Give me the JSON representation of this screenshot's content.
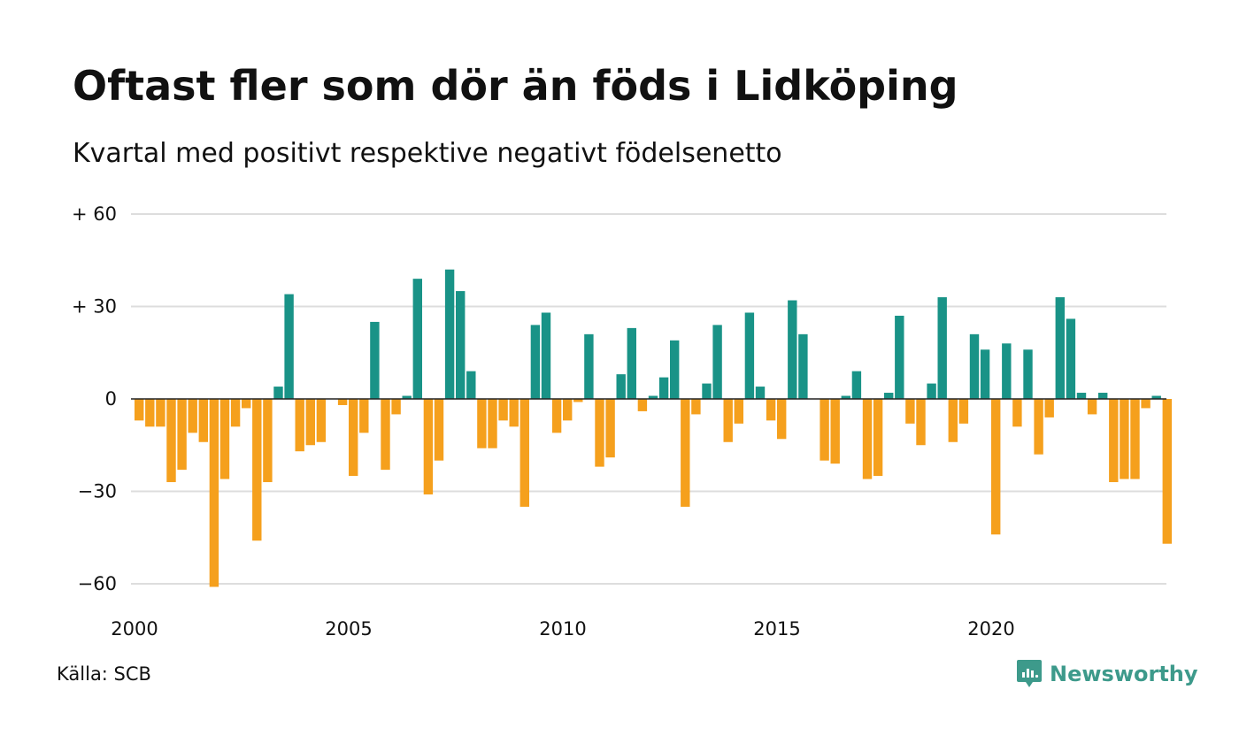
{
  "header": {
    "title": "Oftast fler som dör än föds i Lidköping",
    "subtitle": "Kvartal med positivt respektive negativt födelsenetto"
  },
  "footer": {
    "source": "Källa: SCB",
    "brand": "Newsworthy",
    "brand_icon": "newsworthy-logo-icon"
  },
  "colors": {
    "positive": "#199387",
    "negative": "#f5a01d",
    "grid": "#dddddd",
    "brand": "#3d9a8b"
  },
  "chart_data": {
    "type": "bar",
    "title": "Oftast fler som dör än föds i Lidköping",
    "subtitle": "Kvartal med positivt respektive negativt födelsenetto",
    "xlabel": "",
    "ylabel": "",
    "ylim": [
      -60,
      60
    ],
    "yticks": [
      60,
      30,
      0,
      -30,
      -60
    ],
    "ytick_labels": [
      "+ 60",
      "+ 30",
      "0",
      "−30",
      "−60"
    ],
    "xticks": [
      2000,
      2005,
      2010,
      2015,
      2020
    ],
    "xtick_labels": [
      "2000",
      "2005",
      "2010",
      "2015",
      "2020"
    ],
    "grid": true,
    "legend": "none",
    "start": "2000-Q1",
    "end": "2024-Q1",
    "categories": [
      "2000-Q1",
      "2000-Q2",
      "2000-Q3",
      "2000-Q4",
      "2001-Q1",
      "2001-Q2",
      "2001-Q3",
      "2001-Q4",
      "2002-Q1",
      "2002-Q2",
      "2002-Q3",
      "2002-Q4",
      "2003-Q1",
      "2003-Q2",
      "2003-Q3",
      "2003-Q4",
      "2004-Q1",
      "2004-Q2",
      "2004-Q3",
      "2004-Q4",
      "2005-Q1",
      "2005-Q2",
      "2005-Q3",
      "2005-Q4",
      "2006-Q1",
      "2006-Q2",
      "2006-Q3",
      "2006-Q4",
      "2007-Q1",
      "2007-Q2",
      "2007-Q3",
      "2007-Q4",
      "2008-Q1",
      "2008-Q2",
      "2008-Q3",
      "2008-Q4",
      "2009-Q1",
      "2009-Q2",
      "2009-Q3",
      "2009-Q4",
      "2010-Q1",
      "2010-Q2",
      "2010-Q3",
      "2010-Q4",
      "2011-Q1",
      "2011-Q2",
      "2011-Q3",
      "2011-Q4",
      "2012-Q1",
      "2012-Q2",
      "2012-Q3",
      "2012-Q4",
      "2013-Q1",
      "2013-Q2",
      "2013-Q3",
      "2013-Q4",
      "2014-Q1",
      "2014-Q2",
      "2014-Q3",
      "2014-Q4",
      "2015-Q1",
      "2015-Q2",
      "2015-Q3",
      "2015-Q4",
      "2016-Q1",
      "2016-Q2",
      "2016-Q3",
      "2016-Q4",
      "2017-Q1",
      "2017-Q2",
      "2017-Q3",
      "2017-Q4",
      "2018-Q1",
      "2018-Q2",
      "2018-Q3",
      "2018-Q4",
      "2019-Q1",
      "2019-Q2",
      "2019-Q3",
      "2019-Q4",
      "2020-Q1",
      "2020-Q2",
      "2020-Q3",
      "2020-Q4",
      "2021-Q1",
      "2021-Q2",
      "2021-Q3",
      "2021-Q4",
      "2022-Q1",
      "2022-Q2",
      "2022-Q3",
      "2022-Q4",
      "2023-Q1",
      "2023-Q2",
      "2023-Q3",
      "2023-Q4",
      "2024-Q1"
    ],
    "values": [
      -7,
      -9,
      -9,
      -27,
      -23,
      -11,
      -14,
      -61,
      -26,
      -9,
      -3,
      -46,
      -27,
      4,
      34,
      -17,
      -15,
      -14,
      0,
      -2,
      -25,
      -11,
      25,
      -23,
      -5,
      1,
      39,
      -31,
      -20,
      42,
      35,
      9,
      -16,
      -16,
      -7,
      -9,
      -35,
      24,
      28,
      -11,
      -7,
      -1,
      21,
      -22,
      -19,
      8,
      23,
      -4,
      1,
      7,
      19,
      -35,
      -5,
      5,
      24,
      -14,
      -8,
      28,
      4,
      -7,
      -13,
      32,
      21,
      0,
      -20,
      -21,
      1,
      9,
      -26,
      -25,
      2,
      27,
      -8,
      -15,
      5,
      33,
      -14,
      -8,
      21,
      16,
      -44,
      18,
      -9,
      16,
      -18,
      -6,
      33,
      26,
      2,
      -5,
      2,
      -27,
      -26,
      -26,
      -3,
      1,
      -47
    ]
  }
}
